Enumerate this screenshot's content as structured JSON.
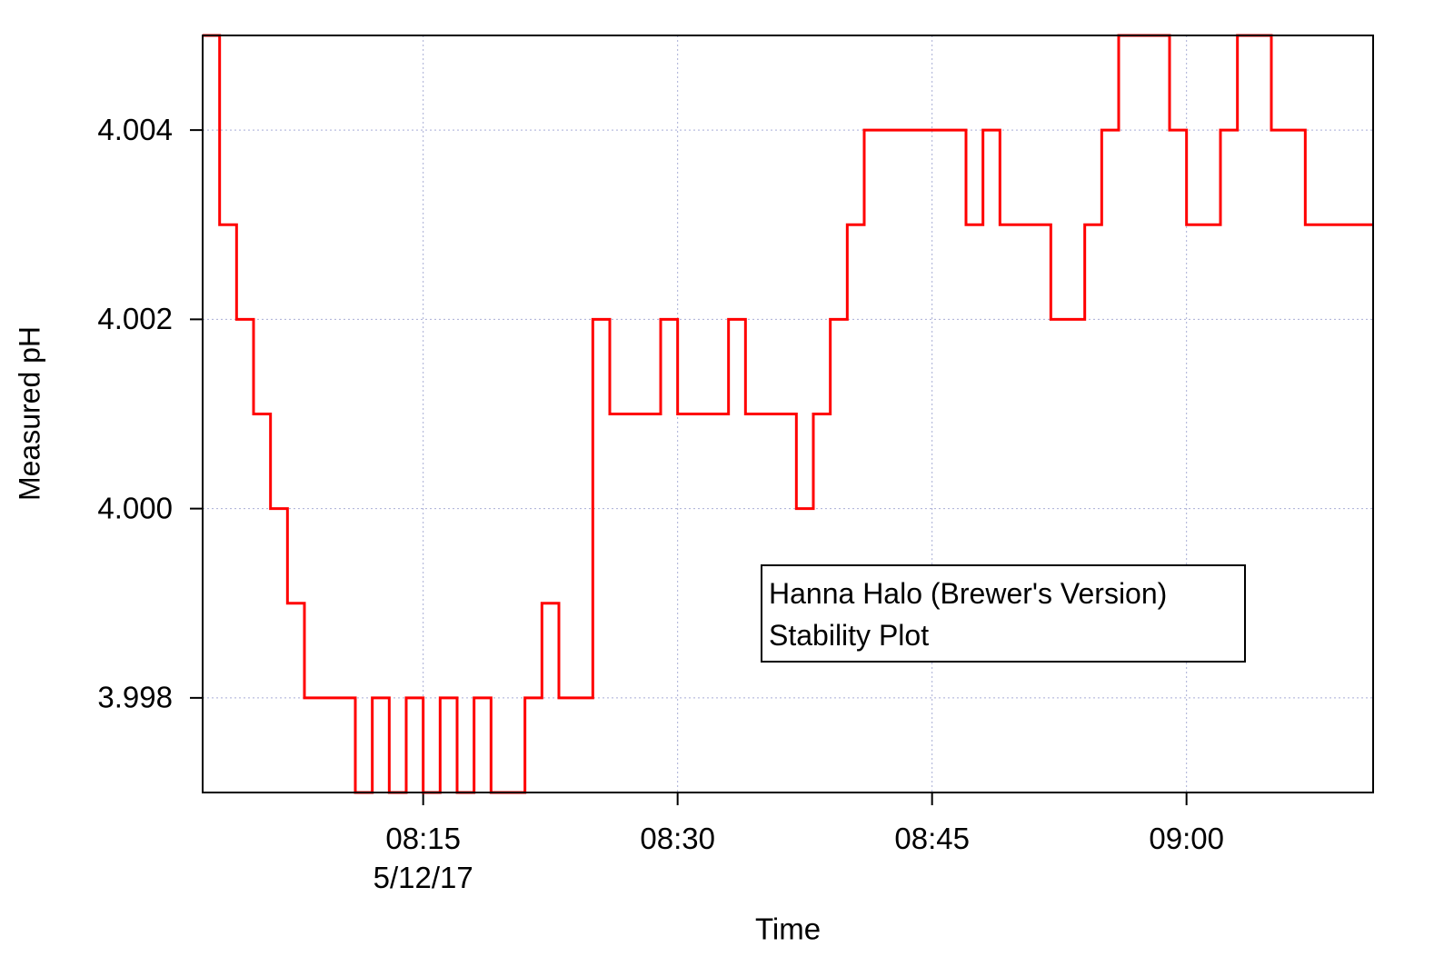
{
  "chart_data": {
    "type": "line",
    "step": true,
    "x_label": "Time",
    "y_label": "Measured pH",
    "x_date": "5/12/17",
    "annotation": [
      "Hanna Halo (Brewer's Version)",
      "Stability Plot"
    ],
    "color": "#ff0000",
    "grid": true,
    "xlim": [
      "08:02",
      "09:11"
    ],
    "xticks": [
      "08:15",
      "08:30",
      "08:45",
      "09:00"
    ],
    "ylim": [
      3.997,
      4.005
    ],
    "yticks": [
      3.998,
      {
        "value": 4.0,
        "label": "4.000"
      },
      4.002,
      4.004
    ],
    "x": [
      "08:02",
      "08:03",
      "08:04",
      "08:05",
      "08:06",
      "08:07",
      "08:08",
      "08:09",
      "08:10",
      "08:11",
      "08:12",
      "08:13",
      "08:14",
      "08:15",
      "08:16",
      "08:17",
      "08:18",
      "08:19",
      "08:20",
      "08:21",
      "08:22",
      "08:23",
      "08:24",
      "08:25",
      "08:26",
      "08:27",
      "08:28",
      "08:29",
      "08:30",
      "08:31",
      "08:32",
      "08:33",
      "08:34",
      "08:35",
      "08:36",
      "08:37",
      "08:38",
      "08:39",
      "08:40",
      "08:41",
      "08:42",
      "08:43",
      "08:44",
      "08:45",
      "08:46",
      "08:47",
      "08:48",
      "08:49",
      "08:50",
      "08:51",
      "08:52",
      "08:53",
      "08:54",
      "08:55",
      "08:56",
      "08:57",
      "08:58",
      "08:59",
      "09:00",
      "09:01",
      "09:02",
      "09:03",
      "09:04",
      "09:05",
      "09:06",
      "09:07",
      "09:08",
      "09:09",
      "09:10",
      "09:11"
    ],
    "values": [
      4.005,
      4.003,
      4.002,
      4.001,
      4.0,
      3.999,
      3.998,
      3.998,
      3.998,
      3.997,
      3.998,
      3.997,
      3.998,
      3.997,
      3.998,
      3.997,
      3.998,
      3.997,
      3.997,
      3.998,
      3.999,
      3.998,
      3.998,
      4.002,
      4.001,
      4.001,
      4.001,
      4.002,
      4.001,
      4.001,
      4.001,
      4.002,
      4.001,
      4.001,
      4.001,
      4.0,
      4.001,
      4.002,
      4.003,
      4.004,
      4.004,
      4.004,
      4.004,
      4.004,
      4.004,
      4.003,
      4.004,
      4.003,
      4.003,
      4.003,
      4.002,
      4.002,
      4.003,
      4.004,
      4.005,
      4.005,
      4.005,
      4.004,
      4.003,
      4.003,
      4.004,
      4.005,
      4.005,
      4.004,
      4.004,
      4.003,
      4.003,
      4.003,
      4.003,
      4.003
    ]
  }
}
